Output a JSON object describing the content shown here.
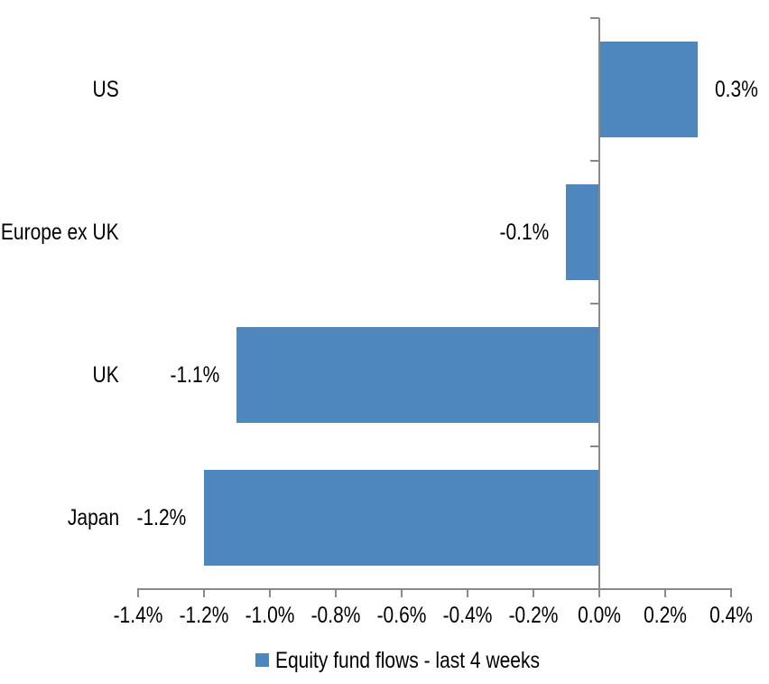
{
  "chart_data": {
    "type": "bar",
    "orientation": "horizontal",
    "title": "",
    "xlabel": "",
    "ylabel": "",
    "categories": [
      "US",
      "Europe ex UK",
      "UK",
      "Japan"
    ],
    "series": [
      {
        "name": "Equity fund flows - last 4 weeks",
        "values": [
          0.3,
          -0.1,
          -1.1,
          -1.2
        ],
        "data_labels": [
          "0.3%",
          "-0.1%",
          "-1.1%",
          "-1.2%"
        ]
      }
    ],
    "xlim": [
      -1.4,
      0.4
    ],
    "x_ticks": [
      -1.4,
      -1.2,
      -1.0,
      -0.8,
      -0.6,
      -0.4,
      -0.2,
      0.0,
      0.2,
      0.4
    ],
    "x_tick_labels": [
      "-1.4%",
      "-1.2%",
      "-1.0%",
      "-0.8%",
      "-0.6%",
      "-0.4%",
      "-0.2%",
      "0.0%",
      "0.2%",
      "0.4%"
    ],
    "grid": false,
    "legend_position": "bottom",
    "bar_color": "#4E87BE",
    "axis_color": "#898989",
    "text_color": "#000000",
    "gap_width_percent": 50
  },
  "legend": {
    "swatch_color": "#4E87BE",
    "label": "Equity fund flows - last 4 weeks"
  }
}
